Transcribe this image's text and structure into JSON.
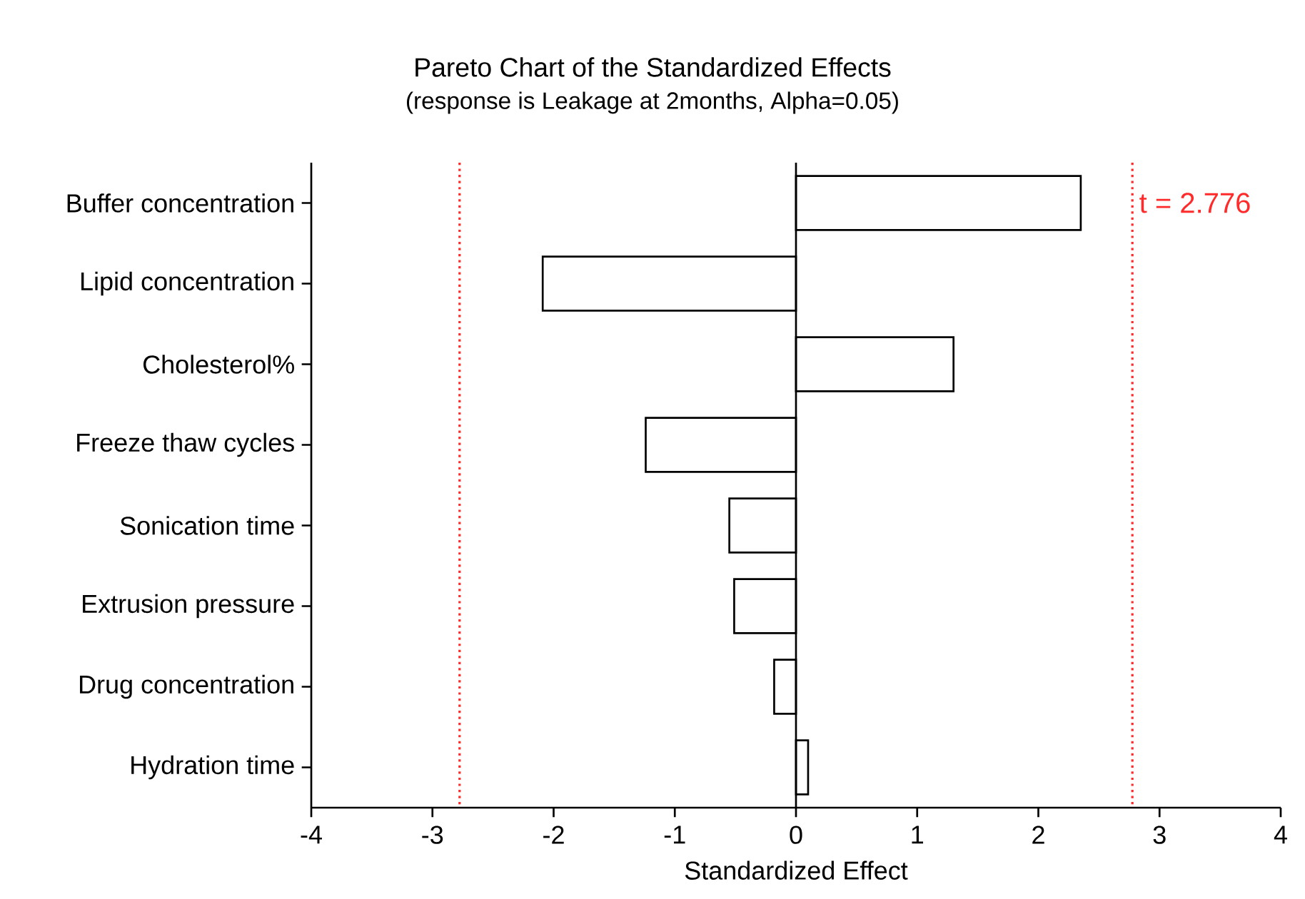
{
  "chart_data": {
    "type": "bar",
    "orientation": "horizontal",
    "title": "Pareto Chart of the Standardized Effects",
    "subtitle": "(response is Leakage at 2months, Alpha=0.05)",
    "xlabel": "Standardized Effect",
    "categories": [
      "Buffer concentration",
      "Lipid concentration",
      "Cholesterol%",
      "Freeze thaw cycles",
      "Sonication time",
      "Extrusion pressure",
      "Drug concentration",
      "Hydration time"
    ],
    "values": [
      2.35,
      -2.09,
      1.3,
      -1.24,
      -0.55,
      -0.51,
      -0.18,
      0.1
    ],
    "color": "#000000",
    "xlim": [
      -4,
      4
    ],
    "xticks": [
      -4,
      -3,
      -2,
      -1,
      0,
      1,
      2,
      3,
      4
    ],
    "ref_lines": [
      {
        "axis": "x",
        "value": -2.776,
        "color": "#ff2a2a",
        "line_style": "dotted"
      },
      {
        "axis": "x",
        "value": 2.776,
        "label": "t = 2.776",
        "color": "#ff2a2a",
        "line_style": "dotted"
      }
    ]
  }
}
